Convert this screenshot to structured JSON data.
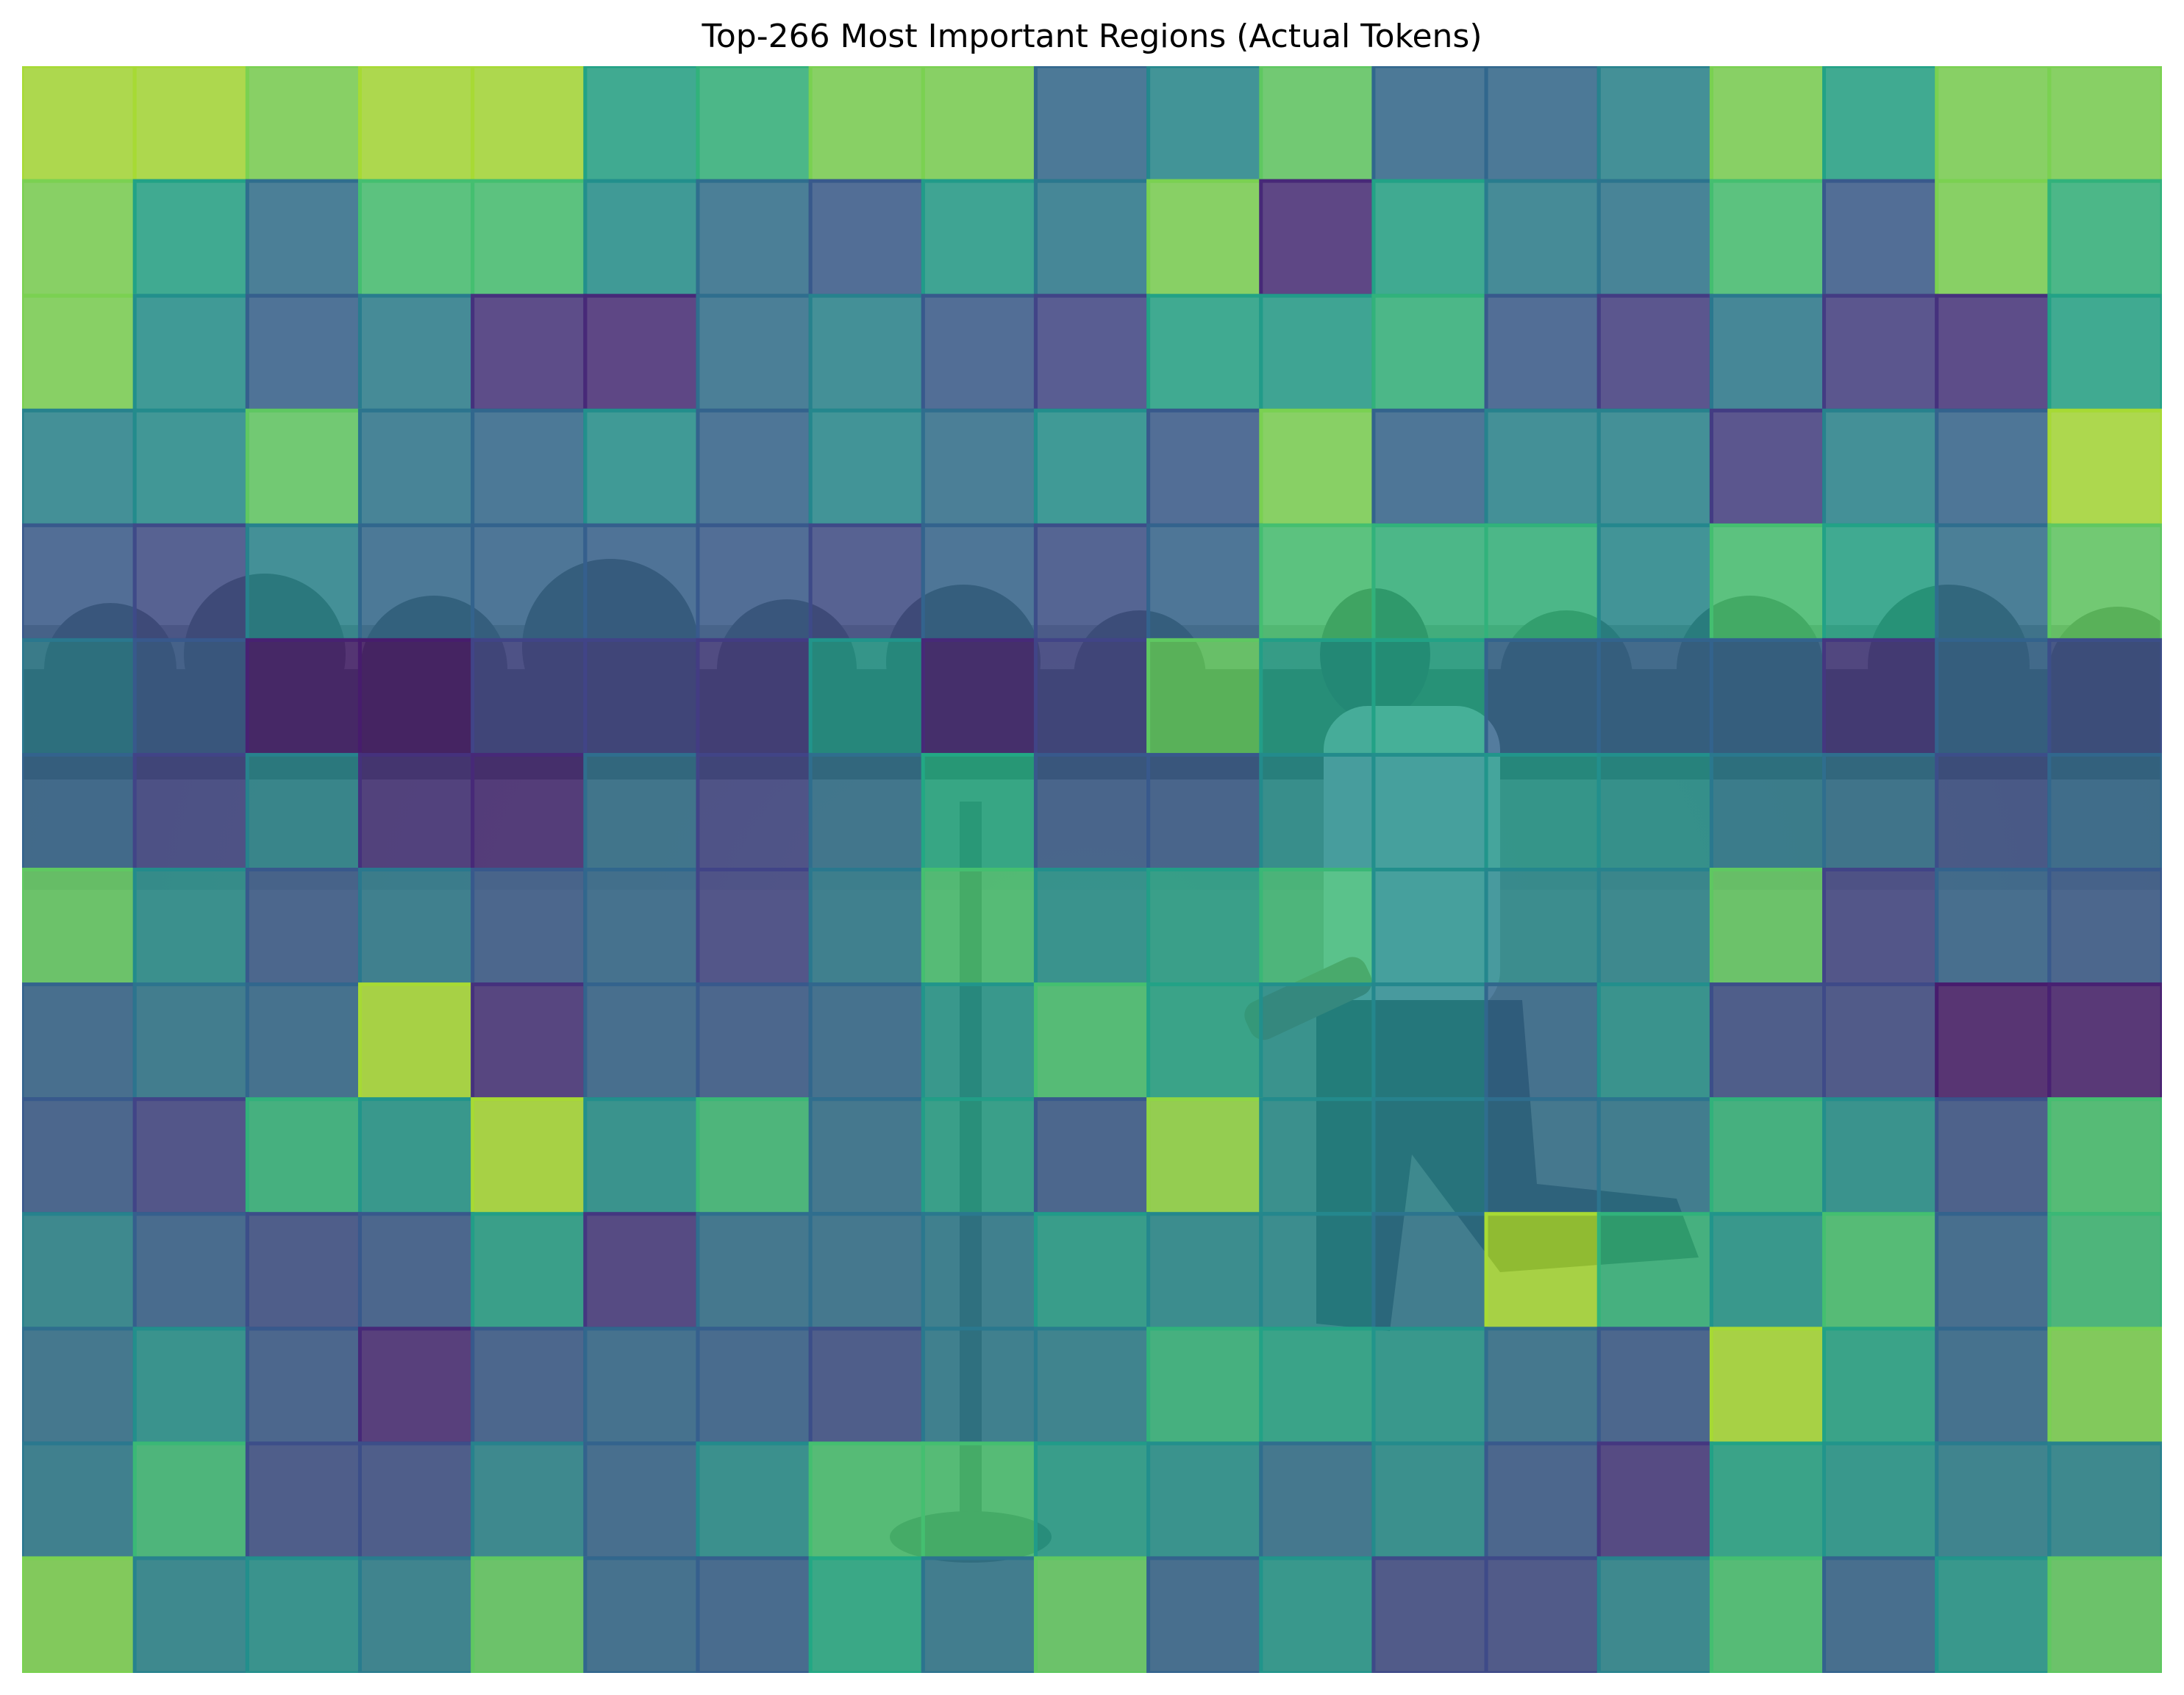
{
  "chart_data": {
    "type": "heatmap",
    "title": "Top-266 Most Important Regions (Actual Tokens)",
    "xlabel": "",
    "ylabel": "",
    "axes": "off",
    "colormap": "viridis",
    "rows": 14,
    "cols": 19,
    "value_range": [
      0,
      1
    ],
    "values": [
      [
        0.92,
        0.92,
        0.88,
        0.92,
        0.92,
        0.72,
        0.78,
        0.88,
        0.88,
        0.42,
        0.58,
        0.85,
        0.42,
        0.42,
        0.55,
        0.88,
        0.72,
        0.88,
        0.88
      ],
      [
        0.88,
        0.72,
        0.45,
        0.82,
        0.82,
        0.62,
        0.45,
        0.35,
        0.68,
        0.5,
        0.88,
        0.15,
        0.72,
        0.52,
        0.48,
        0.82,
        0.35,
        0.88,
        0.78
      ],
      [
        0.88,
        0.62,
        0.38,
        0.52,
        0.18,
        0.15,
        0.45,
        0.55,
        0.35,
        0.25,
        0.72,
        0.68,
        0.78,
        0.35,
        0.22,
        0.5,
        0.22,
        0.18,
        0.72
      ],
      [
        0.55,
        0.6,
        0.85,
        0.48,
        0.42,
        0.62,
        0.4,
        0.58,
        0.45,
        0.62,
        0.35,
        0.88,
        0.4,
        0.55,
        0.55,
        0.22,
        0.55,
        0.4,
        0.92
      ],
      [
        0.35,
        0.28,
        0.55,
        0.42,
        0.4,
        0.38,
        0.35,
        0.28,
        0.4,
        0.3,
        0.4,
        0.82,
        0.78,
        0.78,
        0.58,
        0.82,
        0.72,
        0.45,
        0.85
      ],
      [
        0.5,
        0.35,
        0.12,
        0.1,
        0.25,
        0.25,
        0.22,
        0.65,
        0.15,
        0.25,
        0.85,
        0.7,
        0.72,
        0.4,
        0.4,
        0.4,
        0.2,
        0.4,
        0.3
      ],
      [
        0.4,
        0.25,
        0.55,
        0.18,
        0.15,
        0.45,
        0.25,
        0.45,
        0.75,
        0.35,
        0.35,
        0.6,
        0.62,
        0.65,
        0.62,
        0.5,
        0.45,
        0.3,
        0.42
      ],
      [
        0.85,
        0.6,
        0.35,
        0.5,
        0.35,
        0.42,
        0.25,
        0.5,
        0.82,
        0.62,
        0.7,
        0.8,
        0.62,
        0.58,
        0.55,
        0.85,
        0.25,
        0.4,
        0.35
      ],
      [
        0.4,
        0.48,
        0.42,
        0.92,
        0.18,
        0.4,
        0.35,
        0.42,
        0.65,
        0.82,
        0.72,
        0.62,
        0.58,
        0.42,
        0.62,
        0.3,
        0.28,
        0.1,
        0.12
      ],
      [
        0.35,
        0.25,
        0.78,
        0.65,
        0.92,
        0.62,
        0.8,
        0.45,
        0.7,
        0.35,
        0.9,
        0.6,
        0.55,
        0.45,
        0.48,
        0.78,
        0.62,
        0.32,
        0.82
      ],
      [
        0.55,
        0.38,
        0.3,
        0.35,
        0.7,
        0.2,
        0.45,
        0.45,
        0.5,
        0.68,
        0.58,
        0.58,
        0.48,
        0.92,
        0.78,
        0.65,
        0.82,
        0.4,
        0.8
      ],
      [
        0.45,
        0.62,
        0.35,
        0.15,
        0.35,
        0.42,
        0.38,
        0.3,
        0.5,
        0.52,
        0.78,
        0.72,
        0.65,
        0.45,
        0.35,
        0.92,
        0.72,
        0.42,
        0.88
      ],
      [
        0.5,
        0.8,
        0.3,
        0.3,
        0.55,
        0.4,
        0.6,
        0.82,
        0.82,
        0.68,
        0.62,
        0.45,
        0.6,
        0.35,
        0.2,
        0.72,
        0.65,
        0.52,
        0.55
      ],
      [
        0.88,
        0.55,
        0.62,
        0.52,
        0.85,
        0.42,
        0.38,
        0.75,
        0.48,
        0.85,
        0.4,
        0.65,
        0.28,
        0.28,
        0.55,
        0.82,
        0.4,
        0.65,
        0.85
      ]
    ]
  }
}
